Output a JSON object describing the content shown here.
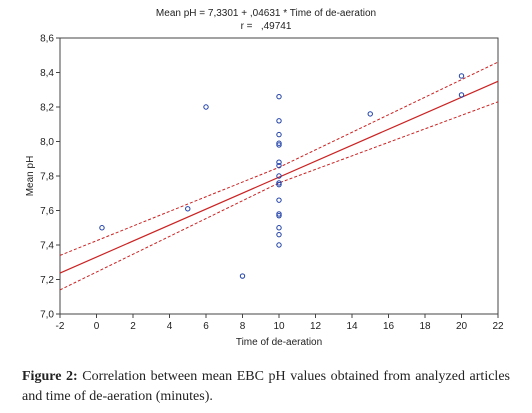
{
  "chart_data": {
    "type": "scatter",
    "title": "Mean pH = 7,3301 + ,04631 * Time of de-aeration",
    "subtitle": "r =   ,49741",
    "xlabel": "Time of de-aeration",
    "ylabel": "Mean pH",
    "xlim": [
      -2,
      22
    ],
    "ylim": [
      7.0,
      8.6
    ],
    "x_ticks": [
      "-2",
      "0",
      "2",
      "4",
      "6",
      "8",
      "10",
      "12",
      "14",
      "16",
      "18",
      "20",
      "22"
    ],
    "y_ticks": [
      "7,0",
      "7,2",
      "7,4",
      "7,6",
      "7,8",
      "8,0",
      "8,2",
      "8,4",
      "8,6"
    ],
    "grid": false,
    "points": [
      {
        "x": 0.3,
        "y": 7.5
      },
      {
        "x": 5.0,
        "y": 7.61
      },
      {
        "x": 6.0,
        "y": 8.2
      },
      {
        "x": 8.0,
        "y": 7.22
      },
      {
        "x": 10.0,
        "y": 8.26
      },
      {
        "x": 10.0,
        "y": 8.12
      },
      {
        "x": 10.0,
        "y": 8.04
      },
      {
        "x": 10.0,
        "y": 7.99
      },
      {
        "x": 10.0,
        "y": 7.98
      },
      {
        "x": 10.0,
        "y": 7.88
      },
      {
        "x": 10.0,
        "y": 7.86
      },
      {
        "x": 10.0,
        "y": 7.8
      },
      {
        "x": 10.0,
        "y": 7.76
      },
      {
        "x": 10.0,
        "y": 7.75
      },
      {
        "x": 10.0,
        "y": 7.66
      },
      {
        "x": 10.0,
        "y": 7.58
      },
      {
        "x": 10.0,
        "y": 7.57
      },
      {
        "x": 10.0,
        "y": 7.5
      },
      {
        "x": 10.0,
        "y": 7.46
      },
      {
        "x": 10.0,
        "y": 7.4
      },
      {
        "x": 15.0,
        "y": 8.16
      },
      {
        "x": 20.0,
        "y": 8.38
      },
      {
        "x": 20.0,
        "y": 8.27
      }
    ],
    "regression": {
      "intercept": 7.3301,
      "slope": 0.04631
    },
    "confidence_band": {
      "upper": [
        {
          "x": -2,
          "y": 7.34
        },
        {
          "x": 10,
          "y": 7.85
        },
        {
          "x": 22,
          "y": 8.46
        }
      ],
      "lower": [
        {
          "x": -2,
          "y": 7.14
        },
        {
          "x": 10,
          "y": 7.76
        },
        {
          "x": 22,
          "y": 8.23
        }
      ]
    },
    "colors": {
      "points": "#1f3fa8",
      "fit_line": "#cc2222",
      "band": "#cc2222",
      "axes": "#444444"
    }
  },
  "caption": {
    "label": "Figure 2:",
    "text": "Correlation between mean EBC pH values obtained from analyzed articles and time of de-aeration (minutes)."
  }
}
